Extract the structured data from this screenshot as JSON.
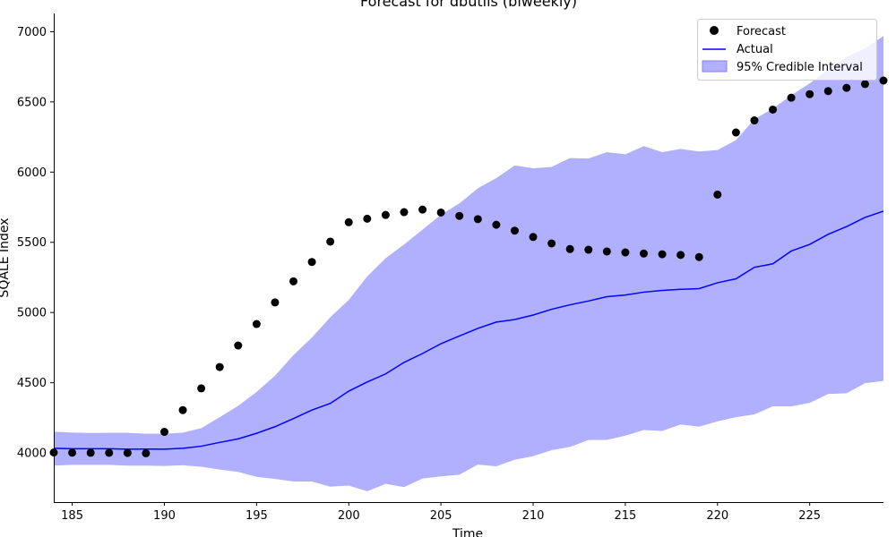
{
  "chart_data": {
    "type": "line",
    "title": "Forecast for dbutils (biweekly)",
    "xlabel": "Time",
    "ylabel": "SQALE Index",
    "xlim": [
      184,
      229
    ],
    "ylim": [
      3650,
      7130
    ],
    "xticks": [
      185,
      190,
      195,
      200,
      205,
      210,
      215,
      220,
      225
    ],
    "yticks": [
      4000,
      4500,
      5000,
      5500,
      6000,
      6500,
      7000
    ],
    "grid": false,
    "legend_position": "top-right",
    "legend": [
      "Forecast",
      "Actual",
      "95% Credible Interval"
    ],
    "colors": {
      "forecast": "#000000",
      "actual": "#0000ff",
      "interval": "#b0b0ff"
    },
    "forecast": {
      "name": "Forecast",
      "x": [
        184,
        185,
        186,
        187,
        188,
        189,
        190,
        191,
        192,
        193,
        194,
        195,
        196,
        197,
        198,
        199,
        200,
        201,
        202,
        203,
        204,
        205,
        206,
        207,
        208,
        209,
        210,
        211,
        212,
        213,
        214,
        215,
        216,
        217,
        218,
        219,
        220,
        221,
        222,
        223,
        224,
        225,
        226,
        227,
        228,
        229
      ],
      "y": [
        4003,
        4002,
        4001,
        4001,
        4000,
        3998,
        4150,
        4305,
        4460,
        4612,
        4765,
        4918,
        5072,
        5222,
        5360,
        5505,
        5643,
        5668,
        5695,
        5715,
        5733,
        5712,
        5688,
        5665,
        5625,
        5583,
        5538,
        5492,
        5452,
        5447,
        5435,
        5428,
        5420,
        5415,
        5410,
        5395,
        5840,
        6282,
        6368,
        6445,
        6530,
        6555,
        6577,
        6600,
        6627,
        6652
      ]
    },
    "actual": {
      "name": "Actual",
      "x": [
        184,
        185,
        186,
        187,
        188,
        189,
        190,
        191,
        192,
        193,
        194,
        195,
        196,
        197,
        198,
        199,
        200,
        201,
        202,
        203,
        204,
        205,
        206,
        207,
        208,
        209,
        210,
        211,
        212,
        213,
        214,
        215,
        216,
        217,
        218,
        219,
        220,
        221,
        222,
        223,
        224,
        225,
        226,
        227,
        228,
        229
      ],
      "y": [
        4033,
        4030,
        4030,
        4030,
        4027,
        4028,
        4027,
        4033,
        4048,
        4075,
        4100,
        4140,
        4187,
        4245,
        4305,
        4353,
        4440,
        4505,
        4563,
        4645,
        4708,
        4778,
        4833,
        4887,
        4932,
        4950,
        4982,
        5023,
        5055,
        5082,
        5113,
        5125,
        5145,
        5157,
        5165,
        5170,
        5212,
        5240,
        5322,
        5347,
        5438,
        5485,
        5557,
        5612,
        5677,
        5722
      ]
    },
    "interval": {
      "name": "95% Credible Interval",
      "x": [
        184,
        185,
        186,
        187,
        188,
        189,
        190,
        191,
        192,
        193,
        194,
        195,
        196,
        197,
        198,
        199,
        200,
        201,
        202,
        203,
        204,
        205,
        206,
        207,
        208,
        209,
        210,
        211,
        212,
        213,
        214,
        215,
        216,
        217,
        218,
        219,
        220,
        221,
        222,
        223,
        224,
        225,
        226,
        227,
        228,
        229
      ],
      "upper": [
        4152,
        4145,
        4142,
        4143,
        4143,
        4137,
        4137,
        4145,
        4177,
        4255,
        4335,
        4435,
        4550,
        4697,
        4822,
        4967,
        5090,
        5257,
        5387,
        5485,
        5590,
        5697,
        5777,
        5885,
        5957,
        6047,
        6027,
        6037,
        6100,
        6097,
        6142,
        6127,
        6185,
        6142,
        6165,
        6147,
        6157,
        6227,
        6377,
        6452,
        6547,
        6632,
        6730,
        6820,
        6880,
        6970
      ],
      "lower": [
        3910,
        3915,
        3915,
        3915,
        3910,
        3910,
        3907,
        3912,
        3902,
        3882,
        3865,
        3830,
        3815,
        3797,
        3797,
        3760,
        3768,
        3727,
        3780,
        3757,
        3818,
        3833,
        3845,
        3917,
        3905,
        3952,
        3977,
        4020,
        4043,
        4092,
        4093,
        4123,
        4163,
        4157,
        4203,
        4187,
        4225,
        4255,
        4275,
        4332,
        4332,
        4357,
        4420,
        4425,
        4497,
        4513
      ]
    }
  }
}
